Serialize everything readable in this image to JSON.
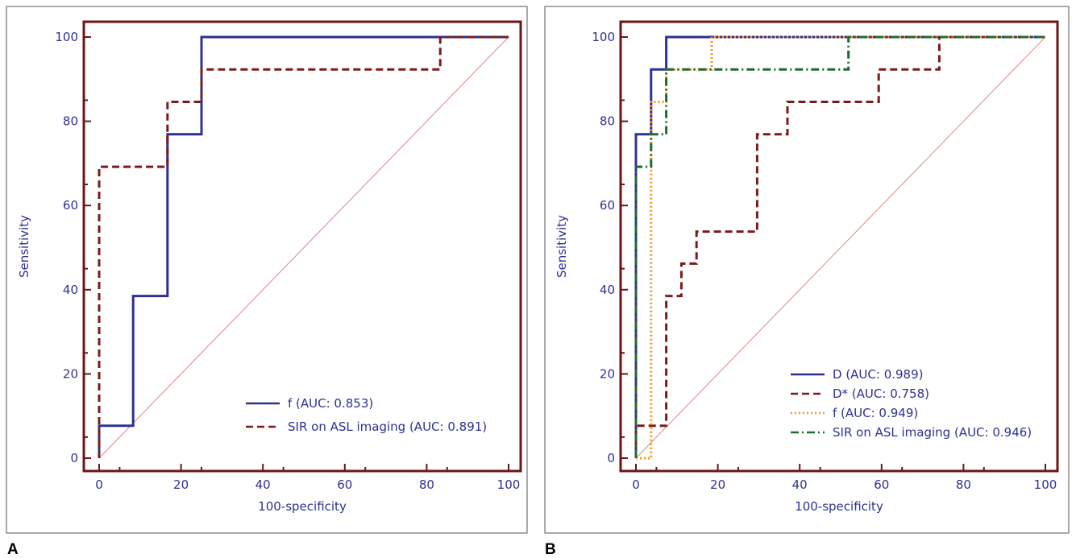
{
  "chart_data": [
    {
      "panel": "A",
      "type": "line",
      "xlabel": "100-specificity",
      "ylabel": "Sensitivity",
      "xlim": [
        0,
        100
      ],
      "ylim": [
        0,
        100
      ],
      "xticks": [
        0,
        20,
        40,
        60,
        80,
        100
      ],
      "yticks": [
        0,
        20,
        40,
        60,
        80,
        100
      ],
      "legend_position": "bottom-right",
      "reference_line": true,
      "series": [
        {
          "name": "f (AUC: 0.853)",
          "color": "#2e3192",
          "style": "solid",
          "points": [
            [
              0,
              0
            ],
            [
              0,
              7.7
            ],
            [
              8.3,
              7.7
            ],
            [
              8.3,
              38.5
            ],
            [
              16.7,
              38.5
            ],
            [
              16.7,
              76.9
            ],
            [
              25,
              76.9
            ],
            [
              25,
              100
            ],
            [
              100,
              100
            ]
          ]
        },
        {
          "name": "SIR on ASL imaging (AUC: 0.891)",
          "color": "#7b1c1c",
          "style": "dashed",
          "points": [
            [
              0,
              0
            ],
            [
              0,
              69.2
            ],
            [
              16.7,
              69.2
            ],
            [
              16.7,
              84.6
            ],
            [
              25,
              84.6
            ],
            [
              25,
              92.3
            ],
            [
              83.3,
              92.3
            ],
            [
              83.3,
              100
            ],
            [
              100,
              100
            ]
          ]
        }
      ]
    },
    {
      "panel": "B",
      "type": "line",
      "xlabel": "100-specificity",
      "ylabel": "Sensitivity",
      "xlim": [
        0,
        100
      ],
      "ylim": [
        0,
        100
      ],
      "xticks": [
        0,
        20,
        40,
        60,
        80,
        100
      ],
      "yticks": [
        0,
        20,
        40,
        60,
        80,
        100
      ],
      "legend_position": "bottom-right",
      "reference_line": true,
      "series": [
        {
          "name": "D (AUC: 0.989)",
          "color": "#2e3192",
          "style": "solid",
          "points": [
            [
              0,
              0
            ],
            [
              0,
              76.9
            ],
            [
              3.7,
              76.9
            ],
            [
              3.7,
              92.3
            ],
            [
              7.4,
              92.3
            ],
            [
              7.4,
              100
            ],
            [
              100,
              100
            ]
          ]
        },
        {
          "name": "D* (AUC: 0.758)",
          "color": "#7b1c1c",
          "style": "dashed",
          "points": [
            [
              0,
              0
            ],
            [
              0,
              7.7
            ],
            [
              7.4,
              7.7
            ],
            [
              7.4,
              38.5
            ],
            [
              11.1,
              38.5
            ],
            [
              11.1,
              46.2
            ],
            [
              14.8,
              46.2
            ],
            [
              14.8,
              53.8
            ],
            [
              29.6,
              53.8
            ],
            [
              29.6,
              76.9
            ],
            [
              37,
              76.9
            ],
            [
              37,
              84.6
            ],
            [
              59.3,
              84.6
            ],
            [
              59.3,
              92.3
            ],
            [
              74.1,
              92.3
            ],
            [
              74.1,
              100
            ],
            [
              100,
              100
            ]
          ]
        },
        {
          "name": "f (AUC: 0.949)",
          "color": "#f7941d",
          "style": "dotted",
          "points": [
            [
              0,
              0
            ],
            [
              3.7,
              0
            ],
            [
              3.7,
              84.6
            ],
            [
              7.4,
              84.6
            ],
            [
              7.4,
              92.3
            ],
            [
              18.5,
              92.3
            ],
            [
              18.5,
              100
            ],
            [
              100,
              100
            ]
          ]
        },
        {
          "name": "SIR on ASL imaging (AUC: 0.946)",
          "color": "#1e6b32",
          "style": "dashdot",
          "points": [
            [
              0,
              0
            ],
            [
              0,
              69.2
            ],
            [
              3.7,
              69.2
            ],
            [
              3.7,
              76.9
            ],
            [
              7.4,
              76.9
            ],
            [
              7.4,
              92.3
            ],
            [
              51.9,
              92.3
            ],
            [
              51.9,
              100
            ],
            [
              100,
              100
            ]
          ]
        }
      ]
    }
  ]
}
